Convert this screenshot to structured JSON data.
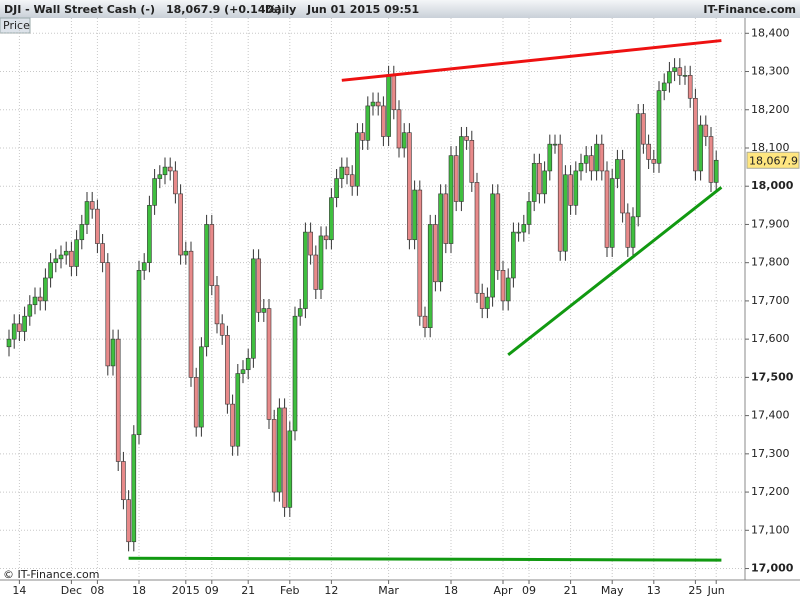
{
  "chart_data": {
    "type": "candlestick",
    "header": {
      "symbol": "DJI - Wall Street Cash (-)",
      "quote": "18,067.9 (+0.14%)",
      "period": "Daily",
      "datetime": "Jun 01 2015 09:51",
      "site": "IT-Finance.com"
    },
    "panel_label": "Price",
    "copyright": "© IT-Finance.com",
    "categories": [
      null,
      null,
      "14",
      null,
      null,
      null,
      null,
      null,
      null,
      null,
      null,
      null,
      "Dec",
      null,
      null,
      null,
      null,
      "08",
      null,
      null,
      null,
      null,
      null,
      null,
      null,
      "18",
      null,
      null,
      null,
      null,
      null,
      null,
      null,
      null,
      "2015",
      null,
      null,
      null,
      null,
      "09",
      null,
      null,
      null,
      null,
      null,
      null,
      "21",
      null,
      null,
      null,
      null,
      null,
      null,
      null,
      "Feb",
      null,
      null,
      null,
      null,
      null,
      null,
      null,
      "12",
      null,
      null,
      null,
      null,
      null,
      null,
      null,
      null,
      null,
      null,
      "Mar",
      null,
      null,
      null,
      null,
      null,
      null,
      null,
      null,
      null,
      null,
      null,
      "18",
      null,
      null,
      null,
      null,
      null,
      null,
      null,
      null,
      null,
      "Apr",
      null,
      null,
      null,
      null,
      "09",
      null,
      null,
      null,
      null,
      null,
      null,
      null,
      "21",
      null,
      null,
      null,
      null,
      null,
      null,
      null,
      "May",
      null,
      null,
      null,
      null,
      null,
      null,
      null,
      "13",
      null,
      null,
      null,
      null,
      null,
      null,
      null,
      "25",
      null,
      null,
      null,
      "Jun"
    ],
    "open": [
      17580,
      17600,
      17640,
      17620,
      17660,
      17690,
      17710,
      17700,
      17760,
      17800,
      17810,
      17820,
      17830,
      17790,
      17860,
      17900,
      17960,
      17940,
      17850,
      17800,
      17530,
      17600,
      17280,
      17180,
      17070,
      17350,
      17780,
      17800,
      17950,
      18020,
      18030,
      18050,
      18040,
      17980,
      17820,
      17830,
      17500,
      17370,
      17580,
      17900,
      17740,
      17640,
      17610,
      17430,
      17320,
      17510,
      17520,
      17550,
      17810,
      17670,
      17680,
      17390,
      17200,
      17420,
      17160,
      17360,
      17660,
      17680,
      17880,
      17820,
      17730,
      17870,
      17860,
      17970,
      18020,
      18050,
      18030,
      18000,
      18140,
      18120,
      18210,
      18220,
      18210,
      18130,
      18290,
      18200,
      18100,
      18140,
      17860,
      17990,
      17660,
      17630,
      17900,
      17750,
      17980,
      17850,
      18080,
      17960,
      18130,
      18120,
      18010,
      17720,
      17680,
      17710,
      17980,
      17780,
      17700,
      17760,
      17880,
      17880,
      17900,
      17960,
      18060,
      17980,
      18040,
      18110,
      18110,
      17830,
      18030,
      17950,
      18040,
      18060,
      18080,
      18040,
      18110,
      18040,
      17840,
      18020,
      18070,
      17930,
      17840,
      17920,
      18190,
      18110,
      18070,
      18060,
      18250,
      18270,
      18300,
      18310,
      18290,
      18290,
      18230,
      18040,
      18160,
      18130,
      18010
    ],
    "high": [
      17625,
      17665,
      17665,
      17685,
      17715,
      17735,
      17735,
      17785,
      17825,
      17835,
      17845,
      17855,
      17855,
      17885,
      17925,
      17985,
      17985,
      17965,
      17875,
      17825,
      17625,
      17625,
      17305,
      17205,
      17375,
      17805,
      17825,
      17975,
      18045,
      18055,
      18075,
      18075,
      18065,
      18005,
      17855,
      17855,
      17525,
      17605,
      17925,
      17925,
      17765,
      17665,
      17635,
      17455,
      17535,
      17545,
      17575,
      17835,
      17835,
      17705,
      17705,
      17415,
      17445,
      17445,
      17385,
      17685,
      17705,
      17905,
      17905,
      17845,
      17895,
      17895,
      17995,
      18045,
      18075,
      18075,
      18055,
      18165,
      18165,
      18235,
      18245,
      18245,
      18235,
      18315,
      18315,
      18225,
      18165,
      18165,
      18015,
      18015,
      17685,
      17925,
      17925,
      18005,
      18005,
      18105,
      18105,
      18155,
      18155,
      18145,
      18035,
      17745,
      17735,
      18005,
      18005,
      17805,
      17785,
      17905,
      17905,
      17925,
      17985,
      18085,
      18085,
      18065,
      18135,
      18135,
      18135,
      18055,
      18055,
      18065,
      18085,
      18105,
      18105,
      18135,
      18135,
      18065,
      18045,
      18095,
      18095,
      17955,
      17945,
      18215,
      18215,
      18135,
      18095,
      18275,
      18295,
      18325,
      18335,
      18335,
      18315,
      18315,
      18255,
      18185,
      18185,
      18155,
      18093
    ],
    "low": [
      17555,
      17575,
      17595,
      17595,
      17635,
      17665,
      17675,
      17675,
      17735,
      17775,
      17785,
      17795,
      17765,
      17765,
      17835,
      17875,
      17915,
      17825,
      17775,
      17505,
      17505,
      17255,
      17155,
      17045,
      17045,
      17325,
      17755,
      17775,
      17925,
      17995,
      18005,
      18015,
      17955,
      17795,
      17795,
      17475,
      17345,
      17345,
      17555,
      17715,
      17615,
      17585,
      17405,
      17295,
      17295,
      17485,
      17495,
      17525,
      17645,
      17645,
      17365,
      17175,
      17175,
      17135,
      17135,
      17335,
      17635,
      17655,
      17795,
      17705,
      17705,
      17835,
      17835,
      17945,
      17995,
      18005,
      17975,
      17975,
      18095,
      18095,
      18185,
      18185,
      18105,
      18105,
      18175,
      18075,
      18075,
      17835,
      17835,
      17635,
      17605,
      17605,
      17725,
      17725,
      17825,
      17825,
      17935,
      17935,
      18095,
      17985,
      17695,
      17655,
      17655,
      17685,
      17755,
      17675,
      17675,
      17735,
      17855,
      17855,
      17875,
      17935,
      17955,
      17955,
      18015,
      18085,
      17805,
      17805,
      17925,
      17925,
      18015,
      18035,
      18015,
      18015,
      18015,
      17815,
      17815,
      17995,
      17905,
      17815,
      17815,
      17895,
      18085,
      18045,
      18035,
      18035,
      18225,
      18245,
      18275,
      18265,
      18265,
      18205,
      18015,
      18015,
      18105,
      17985,
      17985
    ],
    "close": [
      17600,
      17640,
      17620,
      17660,
      17690,
      17710,
      17700,
      17760,
      17800,
      17810,
      17820,
      17830,
      17790,
      17860,
      17900,
      17960,
      17940,
      17850,
      17800,
      17530,
      17600,
      17280,
      17180,
      17070,
      17350,
      17780,
      17800,
      17950,
      18020,
      18030,
      18050,
      18040,
      17980,
      17820,
      17830,
      17500,
      17370,
      17580,
      17900,
      17740,
      17640,
      17610,
      17430,
      17320,
      17510,
      17520,
      17550,
      17810,
      17670,
      17680,
      17390,
      17200,
      17420,
      17160,
      17360,
      17660,
      17680,
      17880,
      17820,
      17730,
      17870,
      17860,
      17970,
      18020,
      18050,
      18030,
      18000,
      18140,
      18120,
      18210,
      18220,
      18210,
      18130,
      18290,
      18200,
      18100,
      18140,
      17860,
      17990,
      17660,
      17630,
      17900,
      17750,
      17980,
      17850,
      18080,
      17960,
      18130,
      18120,
      18010,
      17720,
      17680,
      17710,
      17980,
      17780,
      17700,
      17760,
      17880,
      17880,
      17900,
      17960,
      18060,
      17980,
      18040,
      18110,
      18110,
      17830,
      18030,
      17950,
      18040,
      18060,
      18080,
      18040,
      18110,
      18040,
      17840,
      18020,
      18070,
      17930,
      17840,
      17920,
      18190,
      18110,
      18070,
      18060,
      18250,
      18270,
      18300,
      18310,
      18290,
      18290,
      18230,
      18040,
      18160,
      18130,
      18010,
      18067.9
    ],
    "last_label": "18,067.9",
    "up_color": "#3fbf3f",
    "down_color": "#e88a8a",
    "trendlines": [
      {
        "color": "#ee1111",
        "x": [
          64,
          137
        ],
        "y": [
          18277,
          18381
        ]
      },
      {
        "color": "#119911",
        "x": [
          96,
          137
        ],
        "y": [
          17559,
          17997
        ]
      },
      {
        "color": "#119911",
        "x": [
          23,
          137
        ],
        "y": [
          17027,
          17022
        ]
      }
    ],
    "ylim": [
      16970,
      18440
    ],
    "yticks": [
      {
        "value": 17000,
        "label": "17,000"
      },
      {
        "value": 17100,
        "label": "17,100"
      },
      {
        "value": 17200,
        "label": "17,200"
      },
      {
        "value": 17300,
        "label": "17,300"
      },
      {
        "value": 17400,
        "label": "17,400"
      },
      {
        "value": 17500,
        "label": "17,500"
      },
      {
        "value": 17600,
        "label": "17,600"
      },
      {
        "value": 17700,
        "label": "17,700"
      },
      {
        "value": 17800,
        "label": "17,800"
      },
      {
        "value": 17900,
        "label": "17,900"
      },
      {
        "value": 18000,
        "label": "18,000"
      },
      {
        "value": 18100,
        "label": "18,100"
      },
      {
        "value": 18200,
        "label": "18,200"
      },
      {
        "value": 18300,
        "label": "18,300"
      },
      {
        "value": 18400,
        "label": "18,400"
      }
    ],
    "grid": true
  }
}
